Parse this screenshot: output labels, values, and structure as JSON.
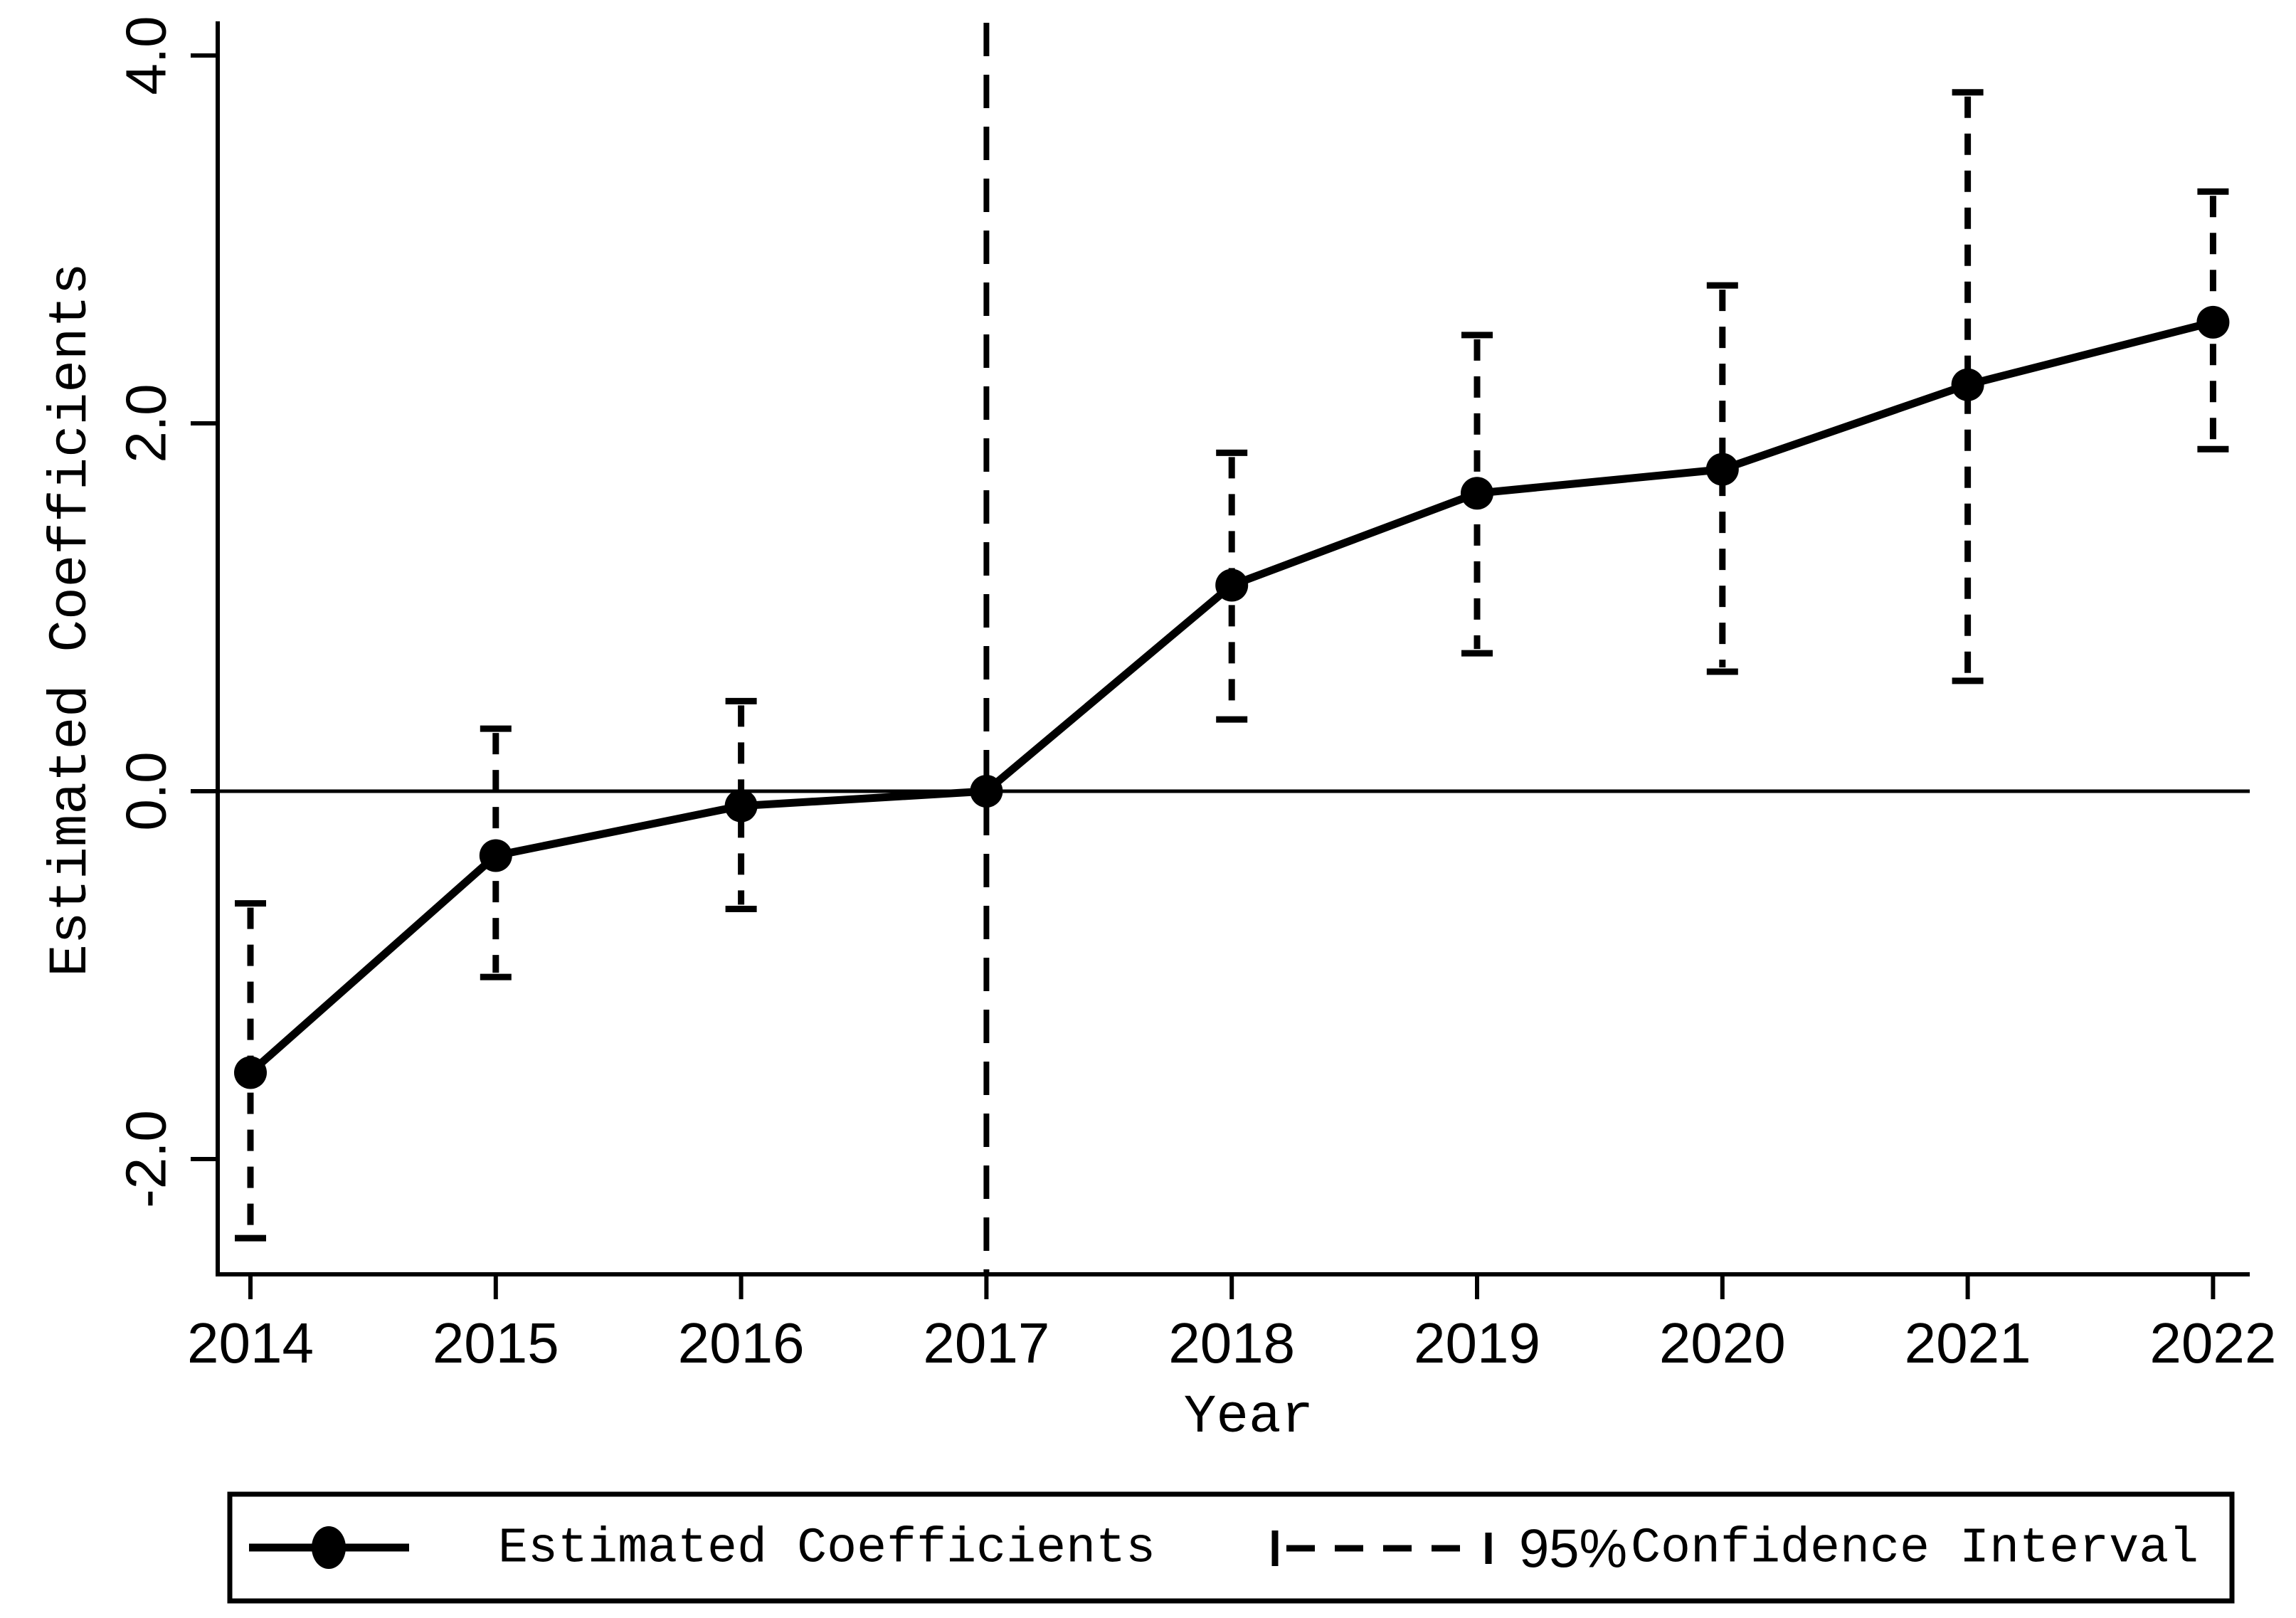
{
  "colors": {
    "ink": "#000000",
    "background": "#ffffff"
  },
  "chart_data": {
    "type": "line",
    "title": "",
    "xlabel": "Year",
    "ylabel": "Estimated Coefficients",
    "x": [
      2014,
      2015,
      2016,
      2017,
      2018,
      2019,
      2020,
      2021,
      2022
    ],
    "xtick_labels": [
      "2014",
      "2015",
      "2016",
      "2017",
      "2018",
      "2019",
      "2020",
      "2021",
      "2022"
    ],
    "series": [
      {
        "name": "Estimated Coefficients",
        "marker": "filled-circle",
        "line_style": "solid",
        "values": [
          -1.53,
          -0.35,
          -0.08,
          0.0,
          1.12,
          1.62,
          1.75,
          2.21,
          2.55
        ]
      }
    ],
    "confidence_interval": {
      "name": "95%Confidence Interval",
      "level": "95%",
      "line_style": "dashed-with-caps",
      "lower": [
        -2.43,
        -1.01,
        -0.64,
        null,
        0.39,
        0.75,
        0.65,
        0.6,
        1.86
      ],
      "upper": [
        -0.61,
        0.34,
        0.49,
        null,
        1.84,
        2.48,
        2.75,
        3.8,
        3.26
      ]
    },
    "reference_x": 2017,
    "vline_x": 2017,
    "vline_style": "dashed",
    "zero_line": true,
    "yticks": [
      4.0,
      2.0,
      0.0,
      -2.0
    ],
    "ytick_labels": [
      "4.0",
      "2.0",
      "0.0",
      "-2.0"
    ],
    "ylim": [
      -2.6,
      4.2
    ],
    "grid": "off",
    "legend_position": "bottom"
  },
  "axes": {
    "x_title": "Year",
    "y_title": "Estimated Coefficients"
  },
  "legend": {
    "series_label": "Estimated Coefficients",
    "ci_level": "95%",
    "ci_label": "Confidence Interval"
  }
}
